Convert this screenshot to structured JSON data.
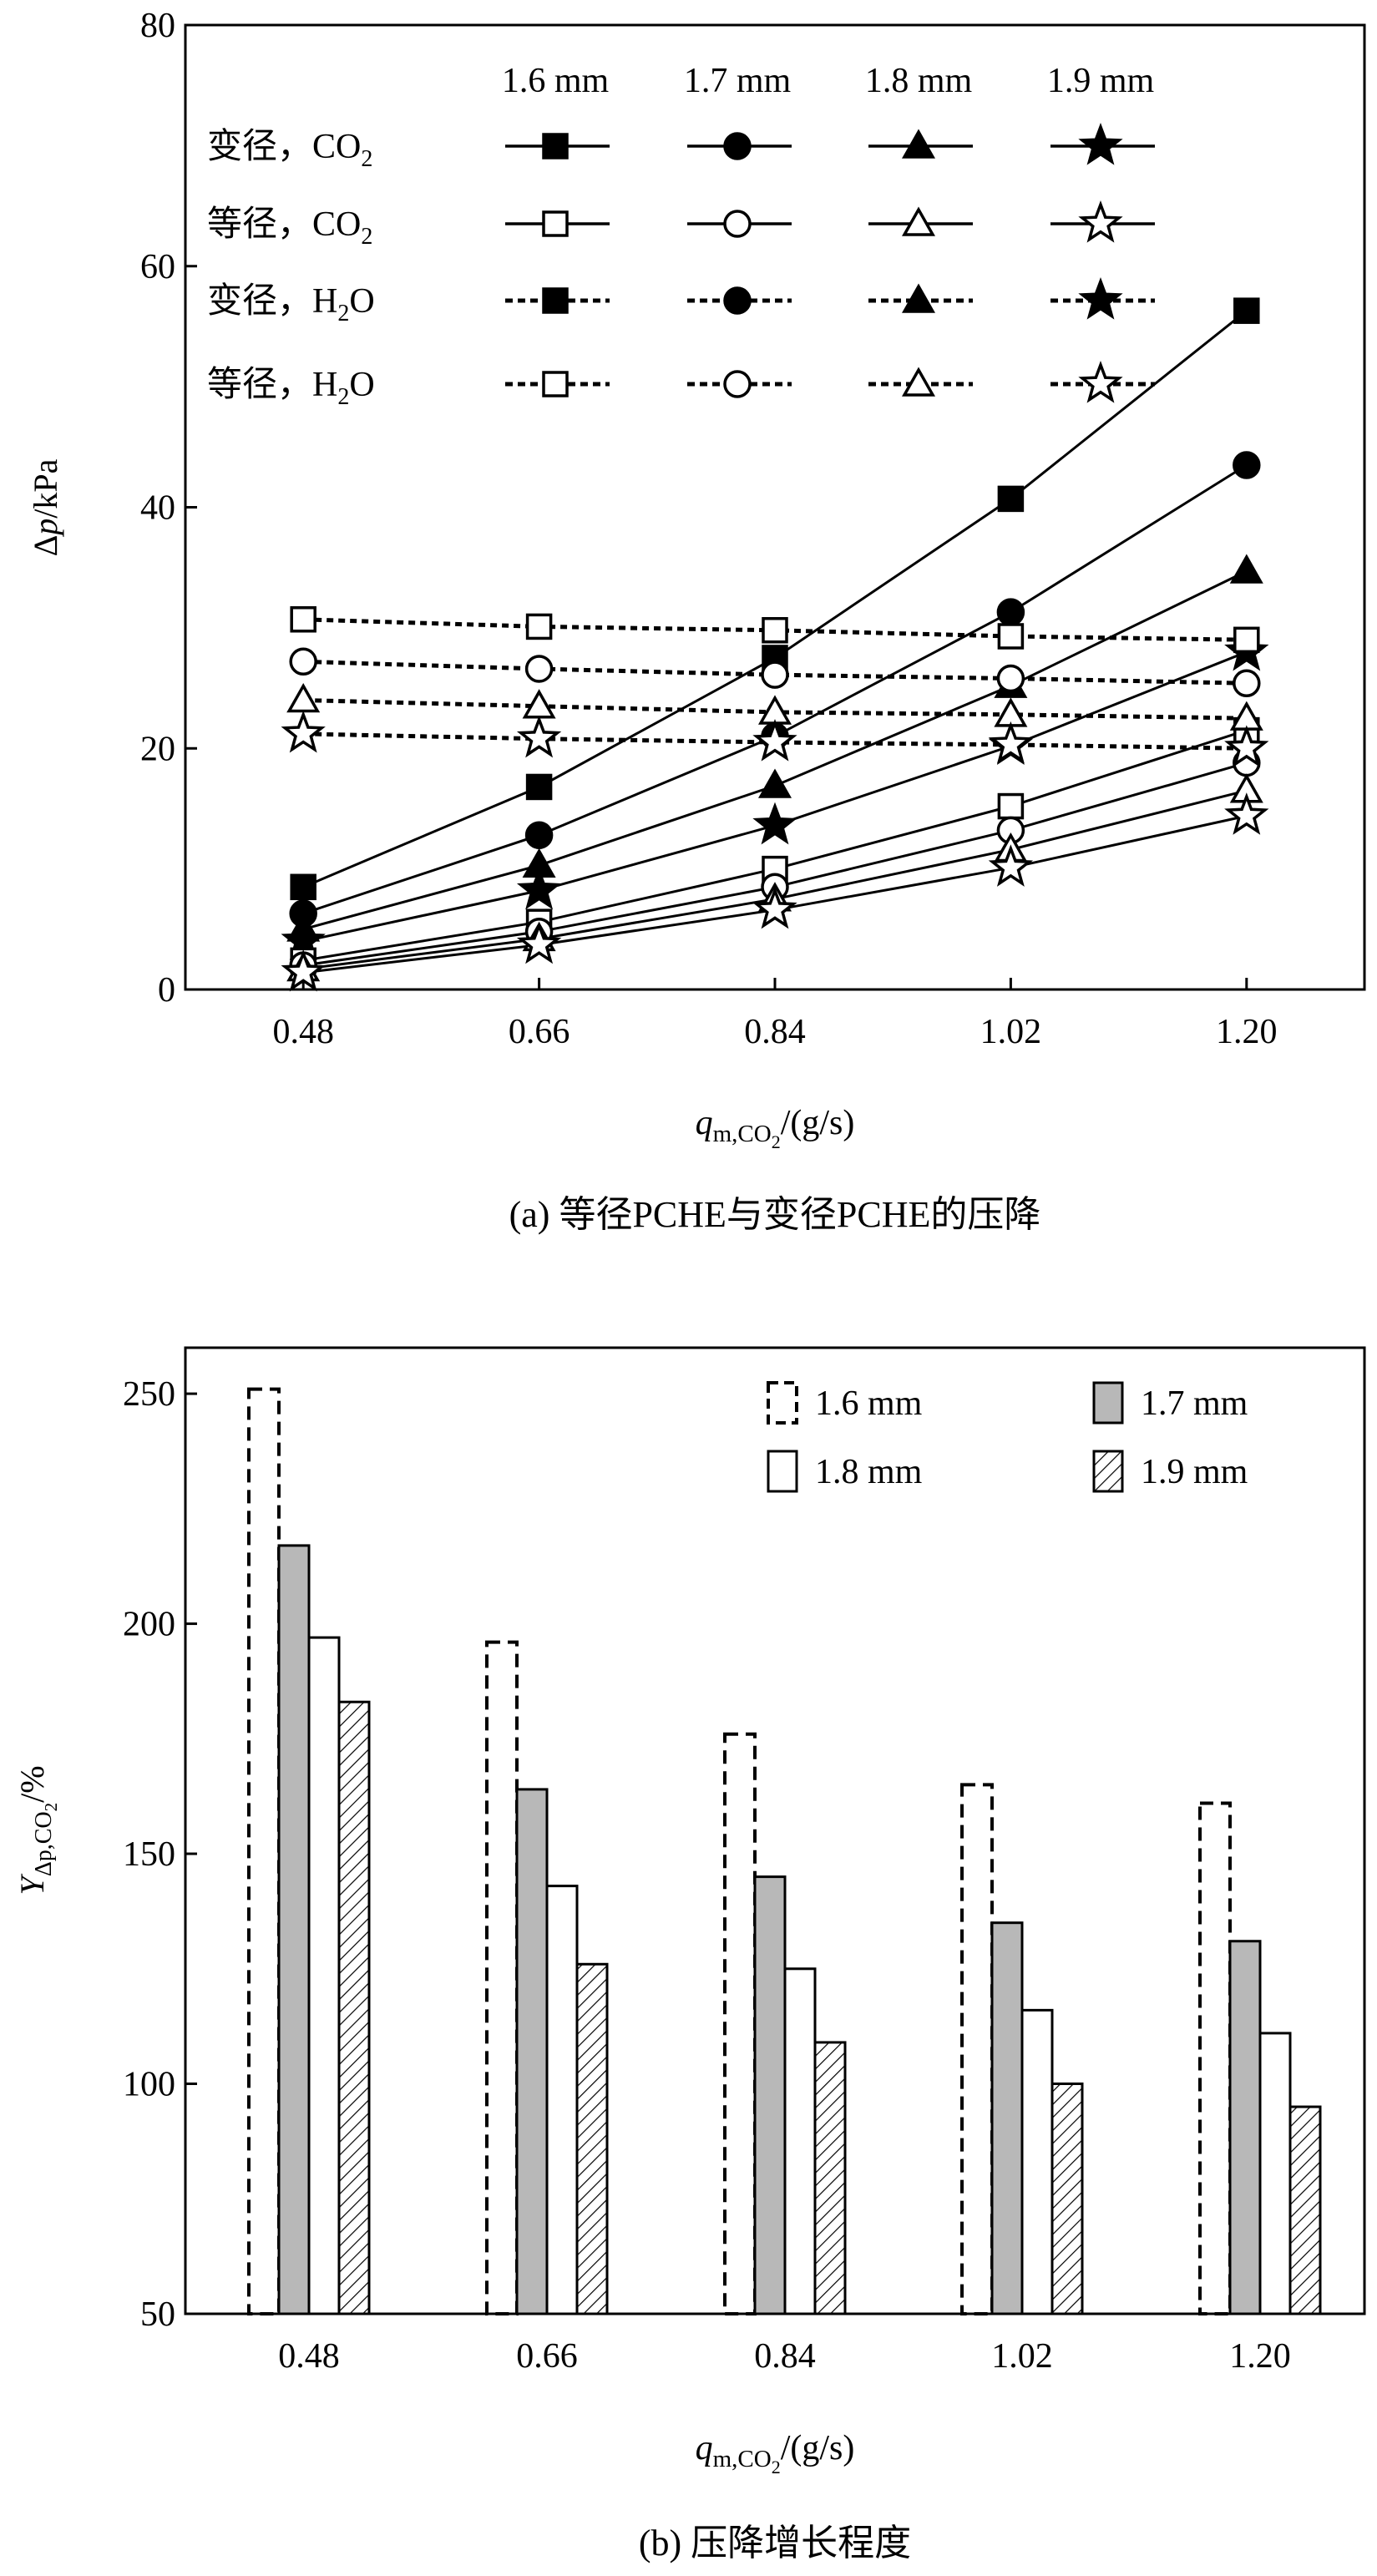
{
  "chart_data": [
    {
      "type": "line",
      "panel": "a",
      "caption": "(a) 等径PCHE与变径PCHE的压降",
      "ylabel_delta": "Δ",
      "ylabel_var": "p",
      "ylabel_unit": "/kPa",
      "xlabel_var": "q",
      "xlabel_sub": "m,CO",
      "xlabel_sub2": "2",
      "xlabel_unit": "/(g/s)",
      "x": [
        0.48,
        0.66,
        0.84,
        1.02,
        1.2
      ],
      "x_tick_labels": [
        "0.48",
        "0.66",
        "0.84",
        "1.02",
        "1.20"
      ],
      "xlim": [
        0.39,
        1.29
      ],
      "ylim": [
        0,
        80
      ],
      "y_ticks": [
        0,
        20,
        40,
        60,
        80
      ],
      "legend": {
        "diameters": [
          "1.6 mm",
          "1.7 mm",
          "1.8 mm",
          "1.9 mm"
        ],
        "rows": [
          {
            "label": "变径，CO",
            "sub": "2",
            "suffix": "",
            "fill": "filled",
            "style": "solid"
          },
          {
            "label": "等径，CO",
            "sub": "2",
            "suffix": "",
            "fill": "open",
            "style": "solid"
          },
          {
            "label": "变径，H",
            "sub": "2",
            "suffix": "O",
            "fill": "filled",
            "style": "dashed"
          },
          {
            "label": "等径，H",
            "sub": "2",
            "suffix": "O",
            "fill": "open",
            "style": "dashed"
          }
        ]
      },
      "series": [
        {
          "name": "变径，CO2，1.6 mm",
          "marker": "square",
          "fill": "filled",
          "style": "solid",
          "values": [
            8.5,
            16.8,
            27.5,
            40.7,
            56.3
          ]
        },
        {
          "name": "变径，CO2，1.7 mm",
          "marker": "circle",
          "fill": "filled",
          "style": "solid",
          "values": [
            6.3,
            12.8,
            21.0,
            31.3,
            43.5
          ]
        },
        {
          "name": "变径，CO2，1.8 mm",
          "marker": "triangle",
          "fill": "filled",
          "style": "solid",
          "values": [
            5.0,
            10.3,
            16.9,
            25.2,
            34.7
          ]
        },
        {
          "name": "变径，CO2，1.9 mm",
          "marker": "star",
          "fill": "filled",
          "style": "solid",
          "values": [
            4.0,
            8.2,
            13.6,
            20.2,
            28.0
          ]
        },
        {
          "name": "等径，CO2，1.6 mm",
          "marker": "square",
          "fill": "open",
          "style": "solid",
          "values": [
            2.4,
            5.6,
            10.0,
            15.2,
            21.5
          ]
        },
        {
          "name": "等径，CO2，1.7 mm",
          "marker": "circle",
          "fill": "open",
          "style": "solid",
          "values": [
            2.0,
            4.8,
            8.5,
            13.2,
            18.8
          ]
        },
        {
          "name": "等径，CO2，1.8 mm",
          "marker": "triangle",
          "fill": "open",
          "style": "solid",
          "values": [
            1.7,
            4.2,
            7.5,
            11.6,
            16.5
          ]
        },
        {
          "name": "等径，CO2，1.9 mm",
          "marker": "star",
          "fill": "open",
          "style": "solid",
          "values": [
            1.4,
            3.7,
            6.6,
            10.1,
            14.4
          ]
        },
        {
          "name": "等径，H2O，1.6 mm",
          "marker": "square",
          "fill": "open",
          "style": "dashed",
          "values": [
            30.7,
            30.1,
            29.8,
            29.3,
            29.0
          ]
        },
        {
          "name": "等径，H2O，1.7 mm",
          "marker": "circle",
          "fill": "open",
          "style": "dashed",
          "values": [
            27.2,
            26.6,
            26.1,
            25.8,
            25.4
          ]
        },
        {
          "name": "等径，H2O，1.8 mm",
          "marker": "triangle",
          "fill": "open",
          "style": "dashed",
          "values": [
            24.0,
            23.5,
            23.0,
            22.8,
            22.5
          ]
        },
        {
          "name": "等径，H2O，1.9 mm",
          "marker": "star",
          "fill": "open",
          "style": "dashed",
          "values": [
            21.2,
            20.8,
            20.5,
            20.3,
            20.0
          ]
        }
      ]
    },
    {
      "type": "bar",
      "panel": "b",
      "caption": "(b) 压降增长程度",
      "ylabel_var": "Y",
      "ylabel_sub": "Δp,CO",
      "ylabel_sub2": "2",
      "ylabel_unit": "/%",
      "xlabel_var": "q",
      "xlabel_sub": "m,CO",
      "xlabel_sub2": "2",
      "xlabel_unit": "/(g/s)",
      "categories": [
        "0.48",
        "0.66",
        "0.84",
        "1.02",
        "1.20"
      ],
      "ylim": [
        50,
        260
      ],
      "y_ticks": [
        50,
        100,
        150,
        200,
        250
      ],
      "series": [
        {
          "name": "1.6 mm",
          "pattern": "dashed-outline",
          "values": [
            251,
            196,
            176,
            165,
            161
          ]
        },
        {
          "name": "1.7 mm",
          "pattern": "gray",
          "values": [
            217,
            164,
            145,
            135,
            131
          ]
        },
        {
          "name": "1.8 mm",
          "pattern": "white",
          "values": [
            197,
            143,
            125,
            116,
            111
          ]
        },
        {
          "name": "1.9 mm",
          "pattern": "hatched",
          "values": [
            183,
            126,
            109,
            100,
            95
          ]
        }
      ]
    }
  ]
}
